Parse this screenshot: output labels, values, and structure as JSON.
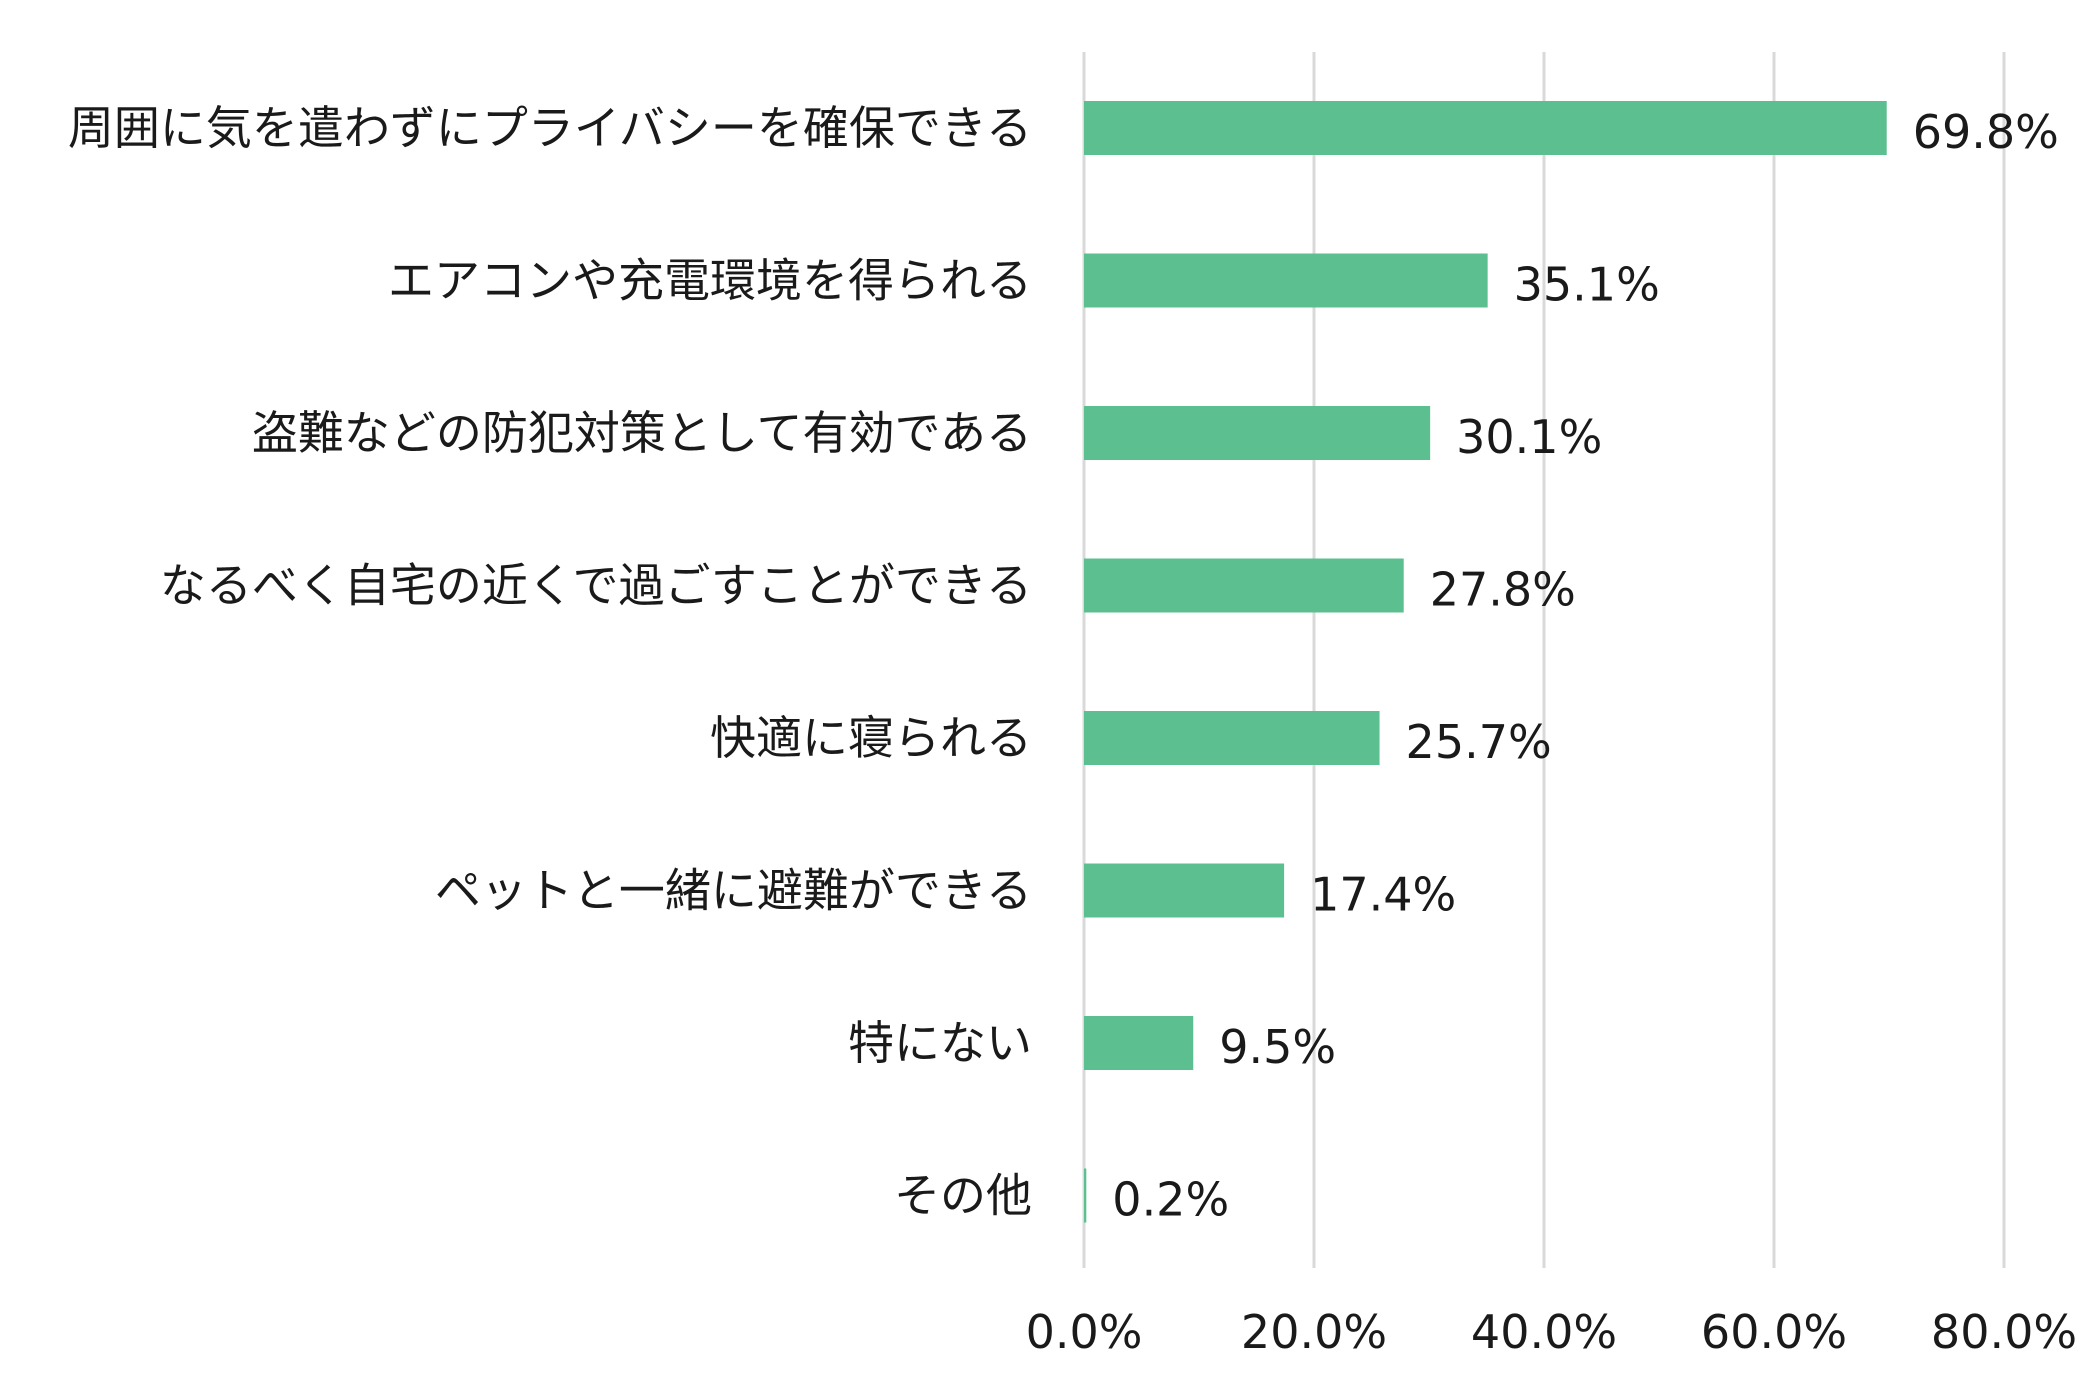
{
  "chart_data": {
    "type": "bar",
    "orientation": "horizontal",
    "title": "",
    "xlabel": "",
    "ylabel": "",
    "categories": [
      "周囲に気を遣わずにプライバシーを確保できる",
      "エアコンや充電環境を得られる",
      "盗難などの防犯対策として有効である",
      "なるべく自宅の近くで過ごすことができる",
      "快適に寝られる",
      "ペットと一緒に避難ができる",
      "特にない",
      "その他"
    ],
    "values": [
      69.8,
      35.1,
      30.1,
      27.8,
      25.7,
      17.4,
      9.5,
      0.2
    ],
    "value_labels": [
      "69.8%",
      "35.1%",
      "30.1%",
      "27.8%",
      "25.7%",
      "17.4%",
      "9.5%",
      "0.2%"
    ],
    "xlim": [
      0,
      80
    ],
    "x_ticks": [
      0,
      20,
      40,
      60,
      80
    ],
    "x_tick_labels": [
      "0.0%",
      "20.0%",
      "40.0%",
      "60.0%",
      "80.0%"
    ],
    "grid": "vertical",
    "legend": "none",
    "bar_color": "#5CBF8F",
    "grid_color": "#d9d9d9",
    "text_color": "#1a1a1a"
  }
}
